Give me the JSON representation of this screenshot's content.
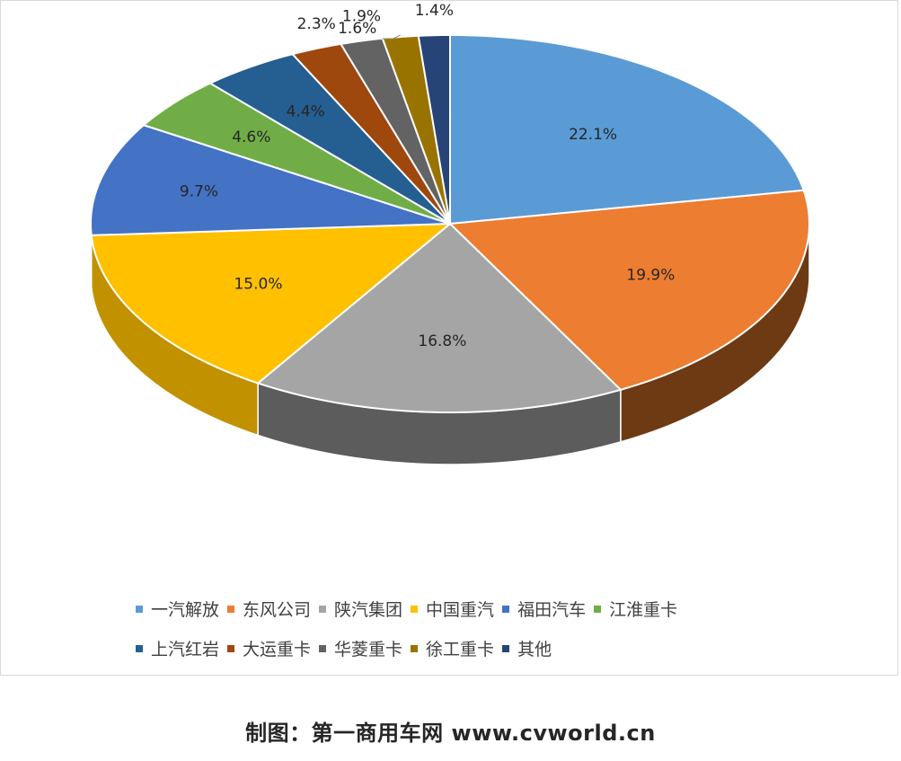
{
  "chart_data": {
    "type": "pie",
    "title": "",
    "style": "3d-exploded-none",
    "slices": [
      {
        "label": "一汽解放",
        "value": 22.1,
        "display": "22.1%",
        "color": "#5b9bd5",
        "side": "#3d6e9c"
      },
      {
        "label": "东风公司",
        "value": 19.9,
        "display": "19.9%",
        "color": "#ed7d31",
        "side": "#6e3a14"
      },
      {
        "label": "陕汽集团",
        "value": 16.8,
        "display": "16.8%",
        "color": "#a5a5a5",
        "side": "#5c5c5c"
      },
      {
        "label": "中国重汽",
        "value": 15.0,
        "display": "15.0%",
        "color": "#ffc000",
        "side": "#c29100"
      },
      {
        "label": "福田汽车",
        "value": 9.7,
        "display": "9.7%",
        "color": "#4472c4",
        "side": "#2b4a80"
      },
      {
        "label": "江淮重卡",
        "value": 4.6,
        "display": "4.6%",
        "color": "#70ad47",
        "side": "#4a7a2c"
      },
      {
        "label": "上汽红岩",
        "value": 4.4,
        "display": "4.4%",
        "color": "#255e91",
        "side": "#173c5e"
      },
      {
        "label": "大运重卡",
        "value": 2.3,
        "display": "2.3%",
        "color": "#9e480e",
        "side": "#63290a"
      },
      {
        "label": "华菱重卡",
        "value": 1.9,
        "display": "1.9%",
        "color": "#636363",
        "side": "#3c3c3c"
      },
      {
        "label": "徐工重卡",
        "value": 1.6,
        "display": "1.6%",
        "color": "#997300",
        "side": "#5e4700"
      },
      {
        "label": "其他",
        "value": 1.4,
        "display": "1.4%",
        "color": "#264478",
        "side": "#172a4c"
      }
    ],
    "legend_position": "bottom"
  },
  "caption": "制图：第一商用车网 www.cvworld.cn"
}
